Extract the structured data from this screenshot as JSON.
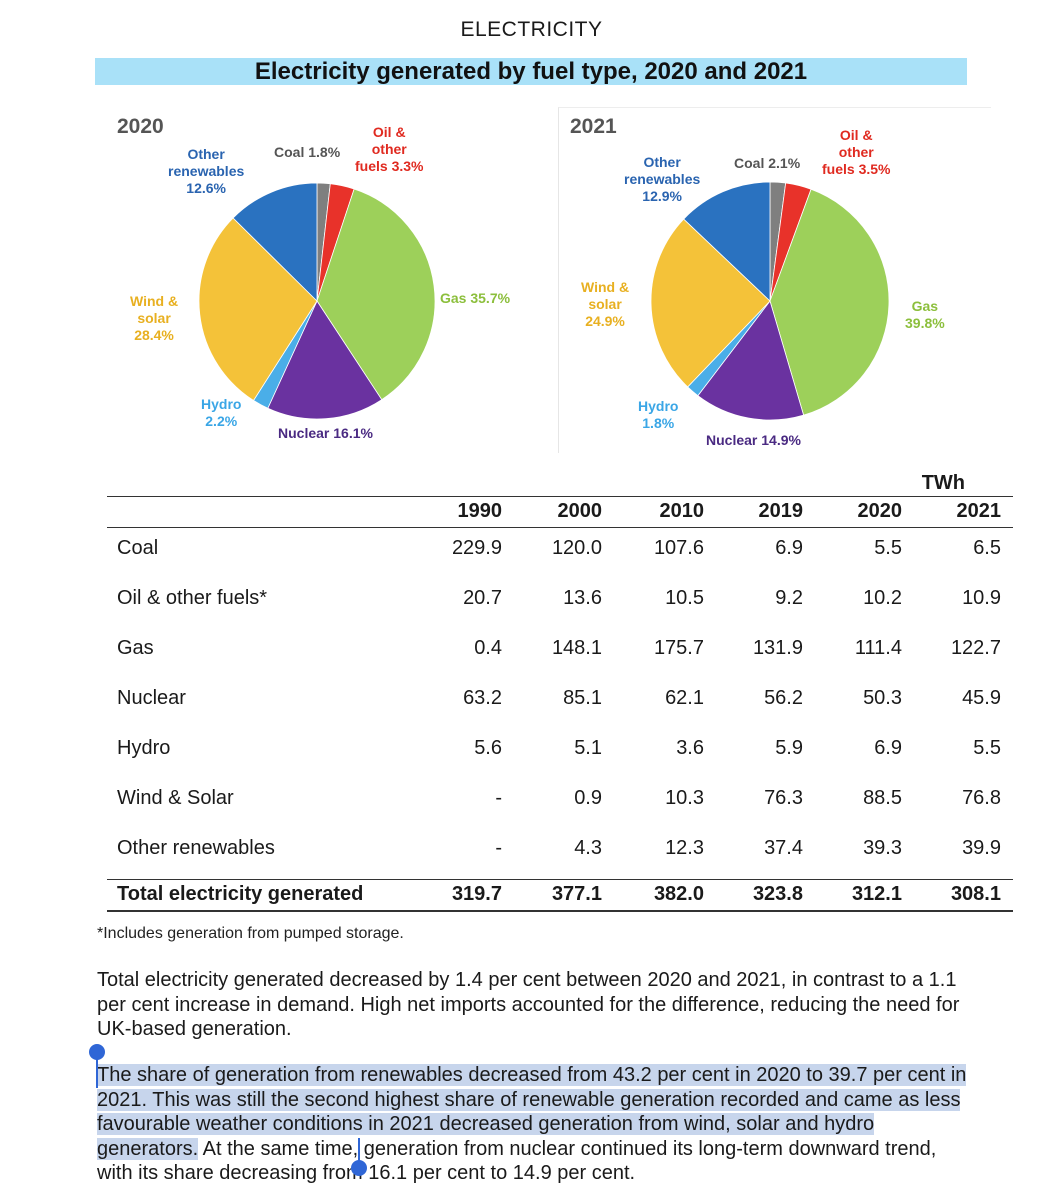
{
  "header": {
    "section": "ELECTRICITY",
    "title": "Electricity generated by fuel type, 2020 and 2021"
  },
  "chart_data": [
    {
      "type": "pie",
      "title": "2020",
      "slices": [
        {
          "label": "Coal",
          "value": 1.8,
          "display": "Coal 1.8%",
          "color": "#7f7f7f",
          "label_color": "#555555"
        },
        {
          "label": "Oil & other fuels",
          "value": 3.3,
          "display": "Oil &\nother\nfuels 3.3%",
          "color": "#e8322a",
          "label_color": "#e02a20"
        },
        {
          "label": "Gas",
          "value": 35.7,
          "display": "Gas 35.7%",
          "color": "#9dd05a",
          "label_color": "#8cbf3c"
        },
        {
          "label": "Nuclear",
          "value": 16.1,
          "display": "Nuclear 16.1%",
          "color": "#6a32a0",
          "label_color": "#4a2a82"
        },
        {
          "label": "Hydro",
          "value": 2.2,
          "display": "Hydro\n2.2%",
          "color": "#4aaee8",
          "label_color": "#3aa6e6"
        },
        {
          "label": "Wind & solar",
          "value": 28.4,
          "display": "Wind &\nsolar\n28.4%",
          "color": "#f4c239",
          "label_color": "#e8b021"
        },
        {
          "label": "Other renewables",
          "value": 12.6,
          "display": "Other\nrenewables\n12.6%",
          "color": "#2a72c0",
          "label_color": "#2a64b0"
        }
      ]
    },
    {
      "type": "pie",
      "title": "2021",
      "slices": [
        {
          "label": "Coal",
          "value": 2.1,
          "display": "Coal 2.1%",
          "color": "#7f7f7f",
          "label_color": "#555555"
        },
        {
          "label": "Oil & other fuels",
          "value": 3.5,
          "display": "Oil &\nother\nfuels 3.5%",
          "color": "#e8322a",
          "label_color": "#e02a20"
        },
        {
          "label": "Gas",
          "value": 39.8,
          "display": "Gas\n39.8%",
          "color": "#9dd05a",
          "label_color": "#8cbf3c"
        },
        {
          "label": "Nuclear",
          "value": 14.9,
          "display": "Nuclear 14.9%",
          "color": "#6a32a0",
          "label_color": "#4a2a82"
        },
        {
          "label": "Hydro",
          "value": 1.8,
          "display": "Hydro\n1.8%",
          "color": "#4aaee8",
          "label_color": "#3aa6e6"
        },
        {
          "label": "Wind & solar",
          "value": 24.9,
          "display": "Wind &\nsolar\n24.9%",
          "color": "#f4c239",
          "label_color": "#e8b021"
        },
        {
          "label": "Other renewables",
          "value": 12.9,
          "display": "Other\nrenewables\n12.9%",
          "color": "#2a72c0",
          "label_color": "#2a64b0"
        }
      ]
    },
    {
      "type": "table",
      "unit": "TWh",
      "columns": [
        "1990",
        "2000",
        "2010",
        "2019",
        "2020",
        "2021"
      ],
      "rows": [
        {
          "label": "Coal",
          "values": [
            "229.9",
            "120.0",
            "107.6",
            "6.9",
            "5.5",
            "6.5"
          ]
        },
        {
          "label": "Oil & other fuels*",
          "values": [
            "20.7",
            "13.6",
            "10.5",
            "9.2",
            "10.2",
            "10.9"
          ]
        },
        {
          "label": "Gas",
          "values": [
            "0.4",
            "148.1",
            "175.7",
            "131.9",
            "111.4",
            "122.7"
          ]
        },
        {
          "label": "Nuclear",
          "values": [
            "63.2",
            "85.1",
            "62.1",
            "56.2",
            "50.3",
            "45.9"
          ]
        },
        {
          "label": "Hydro",
          "values": [
            "5.6",
            "5.1",
            "3.6",
            "5.9",
            "6.9",
            "5.5"
          ]
        },
        {
          "label": "Wind & Solar",
          "values": [
            "-",
            "0.9",
            "10.3",
            "76.3",
            "88.5",
            "76.8"
          ]
        },
        {
          "label": "Other renewables",
          "values": [
            "-",
            "4.3",
            "12.3",
            "37.4",
            "39.3",
            "39.9"
          ]
        }
      ],
      "total": {
        "label": "Total electricity generated",
        "values": [
          "319.7",
          "377.1",
          "382.0",
          "323.8",
          "312.1",
          "308.1"
        ]
      }
    }
  ],
  "footnote": "*Includes generation from pumped storage.",
  "paragraphs": {
    "p1": "Total electricity generated decreased by 1.4 per cent between 2020 and 2021, in contrast to a 1.1 per cent increase in demand. High net imports accounted for the difference, reducing the need for UK-based generation.",
    "p2_selected": "The share of generation from renewables decreased from 43.2 per cent in 2020 to 39.7 per cent in 2021. This was still the second highest share of renewable generation recorded and came as less favourable weather conditions in 2021 decreased generation from wind, solar and hydro generators.",
    "p2_rest": " At the same time, generation from nuclear continued its long-term downward trend, with its share decreasing from 16.1 per cent to 14.9 per cent."
  },
  "colors": {
    "title_band": "#a9e1f8",
    "selection": "#c7d5ec",
    "selection_handle": "#2f66d6"
  }
}
